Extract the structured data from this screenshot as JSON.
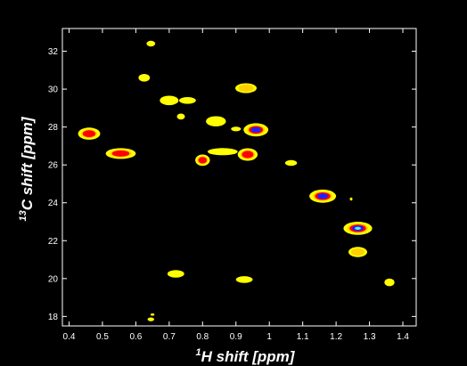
{
  "chart_data": {
    "type": "scatter",
    "subtype": "2D NMR contour (HSQC) spectrum",
    "xlabel_sup": "1",
    "xlabel_main": "H shift [ppm]",
    "ylabel_sup": "13",
    "ylabel_main": "C shift [ppm]",
    "xlim": [
      0.38,
      1.44
    ],
    "ylim": [
      17.5,
      33.2
    ],
    "x_reversed": false,
    "grid": false,
    "legend": "none",
    "x_ticks": [
      "0.4",
      "0.5",
      "0.6",
      "0.7",
      "0.8",
      "0.9",
      "1",
      "1.1",
      "1.2",
      "1.3",
      "1.4"
    ],
    "y_ticks": [
      "18",
      "20",
      "22",
      "24",
      "26",
      "28",
      "30",
      "32"
    ],
    "colors": {
      "background": "#000000",
      "axis": "#ffffff",
      "level_low": "#ffff00",
      "level_mid": "#ffd000",
      "level_high": "#ff0000",
      "level_higher": "#2020ff",
      "level_top": "#40ffff"
    },
    "peaks": [
      {
        "x": 0.645,
        "y": 32.4,
        "level": 1,
        "rx": 0.013,
        "ry": 0.15
      },
      {
        "x": 0.625,
        "y": 30.6,
        "level": 1,
        "rx": 0.017,
        "ry": 0.2
      },
      {
        "x": 0.93,
        "y": 30.05,
        "level": 2,
        "rx": 0.032,
        "ry": 0.26
      },
      {
        "x": 0.7,
        "y": 29.4,
        "level": 1,
        "rx": 0.028,
        "ry": 0.25
      },
      {
        "x": 0.755,
        "y": 29.4,
        "level": 1,
        "rx": 0.025,
        "ry": 0.18
      },
      {
        "x": 0.735,
        "y": 28.55,
        "level": 1,
        "rx": 0.012,
        "ry": 0.16
      },
      {
        "x": 0.84,
        "y": 28.3,
        "level": 1,
        "rx": 0.03,
        "ry": 0.27
      },
      {
        "x": 0.46,
        "y": 27.65,
        "level": 3,
        "rx": 0.033,
        "ry": 0.32
      },
      {
        "x": 0.96,
        "y": 27.85,
        "level": 4,
        "rx": 0.037,
        "ry": 0.35
      },
      {
        "x": 0.9,
        "y": 27.9,
        "level": 1,
        "rx": 0.015,
        "ry": 0.12
      },
      {
        "x": 0.555,
        "y": 26.6,
        "level": 3,
        "rx": 0.045,
        "ry": 0.28
      },
      {
        "x": 0.86,
        "y": 26.7,
        "level": 1,
        "rx": 0.045,
        "ry": 0.19
      },
      {
        "x": 0.935,
        "y": 26.55,
        "level": 3,
        "rx": 0.03,
        "ry": 0.33
      },
      {
        "x": 0.8,
        "y": 26.25,
        "level": 3,
        "rx": 0.022,
        "ry": 0.3
      },
      {
        "x": 1.065,
        "y": 26.1,
        "level": 1,
        "rx": 0.018,
        "ry": 0.15
      },
      {
        "x": 1.16,
        "y": 24.35,
        "level": 4,
        "rx": 0.04,
        "ry": 0.35
      },
      {
        "x": 1.245,
        "y": 24.2,
        "level": 1,
        "rx": 0.004,
        "ry": 0.08
      },
      {
        "x": 1.265,
        "y": 22.65,
        "level": 5,
        "rx": 0.043,
        "ry": 0.35
      },
      {
        "x": 1.265,
        "y": 21.4,
        "level": 2,
        "rx": 0.028,
        "ry": 0.27
      },
      {
        "x": 0.925,
        "y": 19.95,
        "level": 1,
        "rx": 0.025,
        "ry": 0.18
      },
      {
        "x": 0.72,
        "y": 20.25,
        "level": 1,
        "rx": 0.025,
        "ry": 0.2
      },
      {
        "x": 1.36,
        "y": 19.8,
        "level": 1,
        "rx": 0.015,
        "ry": 0.2
      },
      {
        "x": 0.645,
        "y": 17.85,
        "level": 1,
        "rx": 0.01,
        "ry": 0.1
      },
      {
        "x": 0.65,
        "y": 18.1,
        "level": 1,
        "rx": 0.006,
        "ry": 0.06
      }
    ]
  }
}
